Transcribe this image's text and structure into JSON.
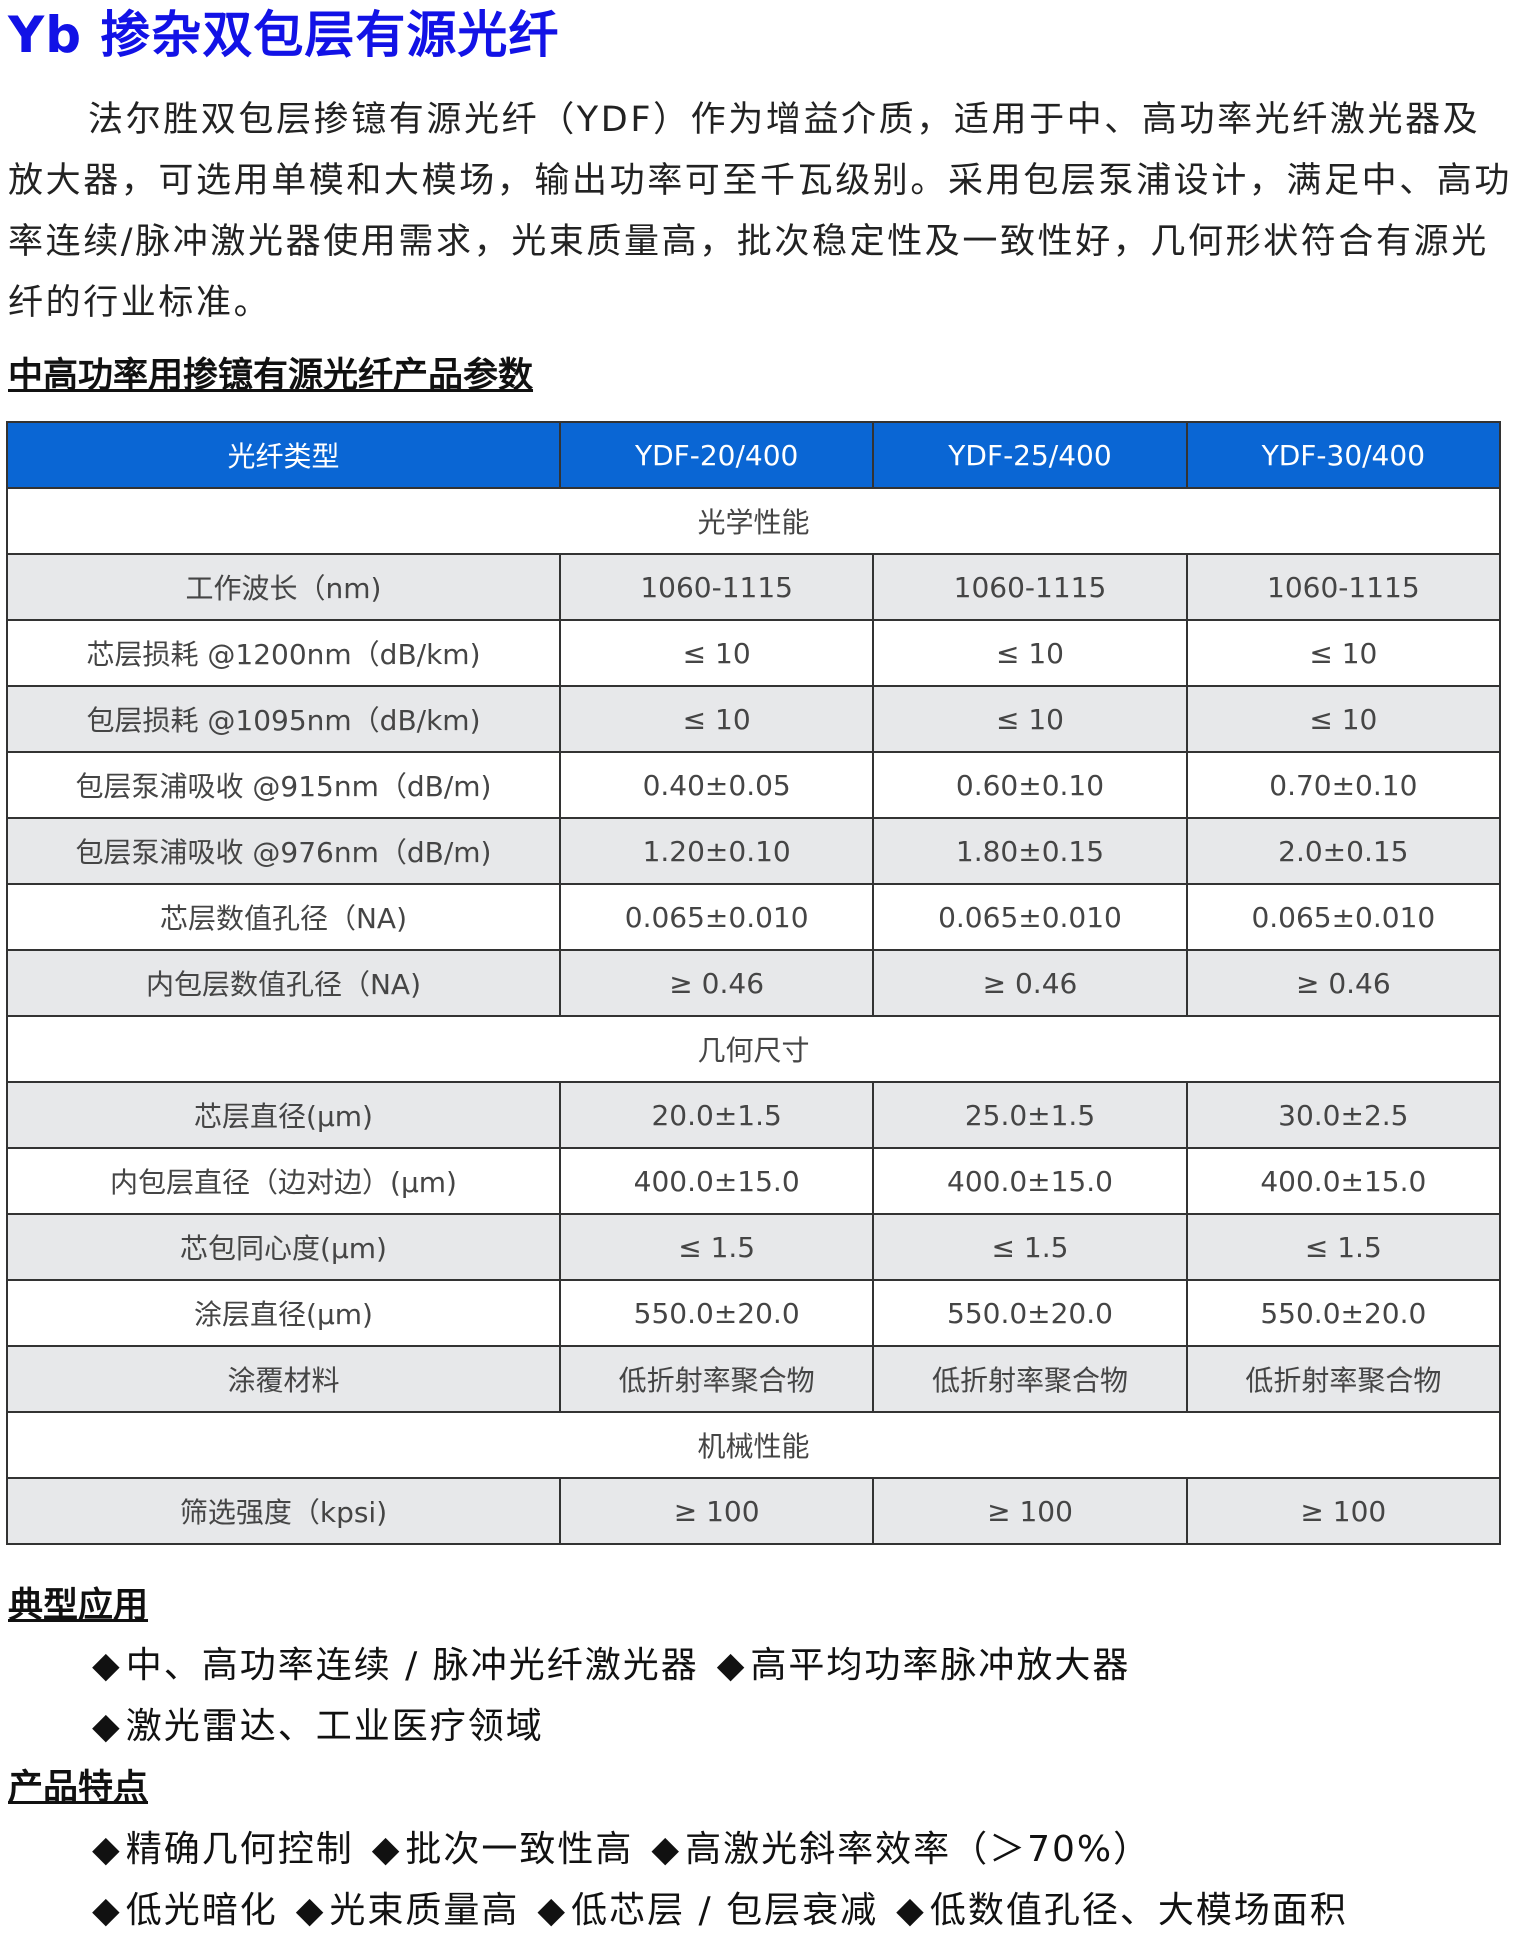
{
  "title": "Yb 掺杂双包层有源光纤",
  "intro": "法尔胜双包层掺镱有源光纤（YDF）作为增益介质，适用于中、高功率光纤激光器及放大器，可选用单模和大模场，输出功率可至千瓦级别。采用包层泵浦设计，满足中、高功率连续/脉冲激光器使用需求，光束质量高，批次稳定性及一致性好，几何形状符合有源光纤的行业标准。",
  "table_heading": "中高功率用掺镱有源光纤产品参数",
  "table": {
    "headers": [
      "光纤类型",
      "YDF-20/400",
      "YDF-25/400",
      "YDF-30/400"
    ],
    "colors": {
      "header_bg": "#0a66d4",
      "band_bg": "#e7e8ea"
    },
    "sections": [
      {
        "title": "光学性能",
        "rows": [
          [
            "工作波长（nm)",
            "1060-1115",
            "1060-1115",
            "1060-1115"
          ],
          [
            "芯层损耗 @1200nm（dB/km)",
            "≤ 10",
            "≤ 10",
            "≤ 10"
          ],
          [
            "包层损耗 @1095nm（dB/km)",
            "≤ 10",
            "≤ 10",
            "≤ 10"
          ],
          [
            "包层泵浦吸收 @915nm（dB/m)",
            "0.40±0.05",
            "0.60±0.10",
            "0.70±0.10"
          ],
          [
            "包层泵浦吸收 @976nm（dB/m)",
            "1.20±0.10",
            "1.80±0.15",
            "2.0±0.15"
          ],
          [
            "芯层数值孔径（NA)",
            "0.065±0.010",
            "0.065±0.010",
            "0.065±0.010"
          ],
          [
            "内包层数值孔径（NA)",
            "≥ 0.46",
            "≥ 0.46",
            "≥ 0.46"
          ]
        ]
      },
      {
        "title": "几何尺寸",
        "rows": [
          [
            "芯层直径(μm)",
            "20.0±1.5",
            "25.0±1.5",
            "30.0±2.5"
          ],
          [
            "内包层直径（边对边）(μm)",
            "400.0±15.0",
            "400.0±15.0",
            "400.0±15.0"
          ],
          [
            "芯包同心度(μm)",
            "≤ 1.5",
            "≤ 1.5",
            "≤ 1.5"
          ],
          [
            "涂层直径(μm)",
            "550.0±20.0",
            "550.0±20.0",
            "550.0±20.0"
          ],
          [
            "涂覆材料",
            "低折射率聚合物",
            "低折射率聚合物",
            "低折射率聚合物"
          ]
        ]
      },
      {
        "title": "机械性能",
        "rows": [
          [
            "筛选强度（kpsi)",
            "≥ 100",
            "≥ 100",
            "≥ 100"
          ]
        ]
      }
    ]
  },
  "applications": {
    "heading": "典型应用",
    "lines": [
      [
        "中、高功率连续 / 脉冲光纤激光器",
        "高平均功率脉冲放大器"
      ],
      [
        "激光雷达、工业医疗领域"
      ]
    ]
  },
  "features": {
    "heading": "产品特点",
    "lines": [
      [
        "精确几何控制",
        "批次一致性高",
        "高激光斜率效率（＞70%）"
      ],
      [
        "低光暗化",
        "光束质量高",
        "低芯层 / 包层衰减",
        "低数值孔径、大模场面积"
      ]
    ]
  },
  "bullet_icon": "diamond-bullet-icon"
}
